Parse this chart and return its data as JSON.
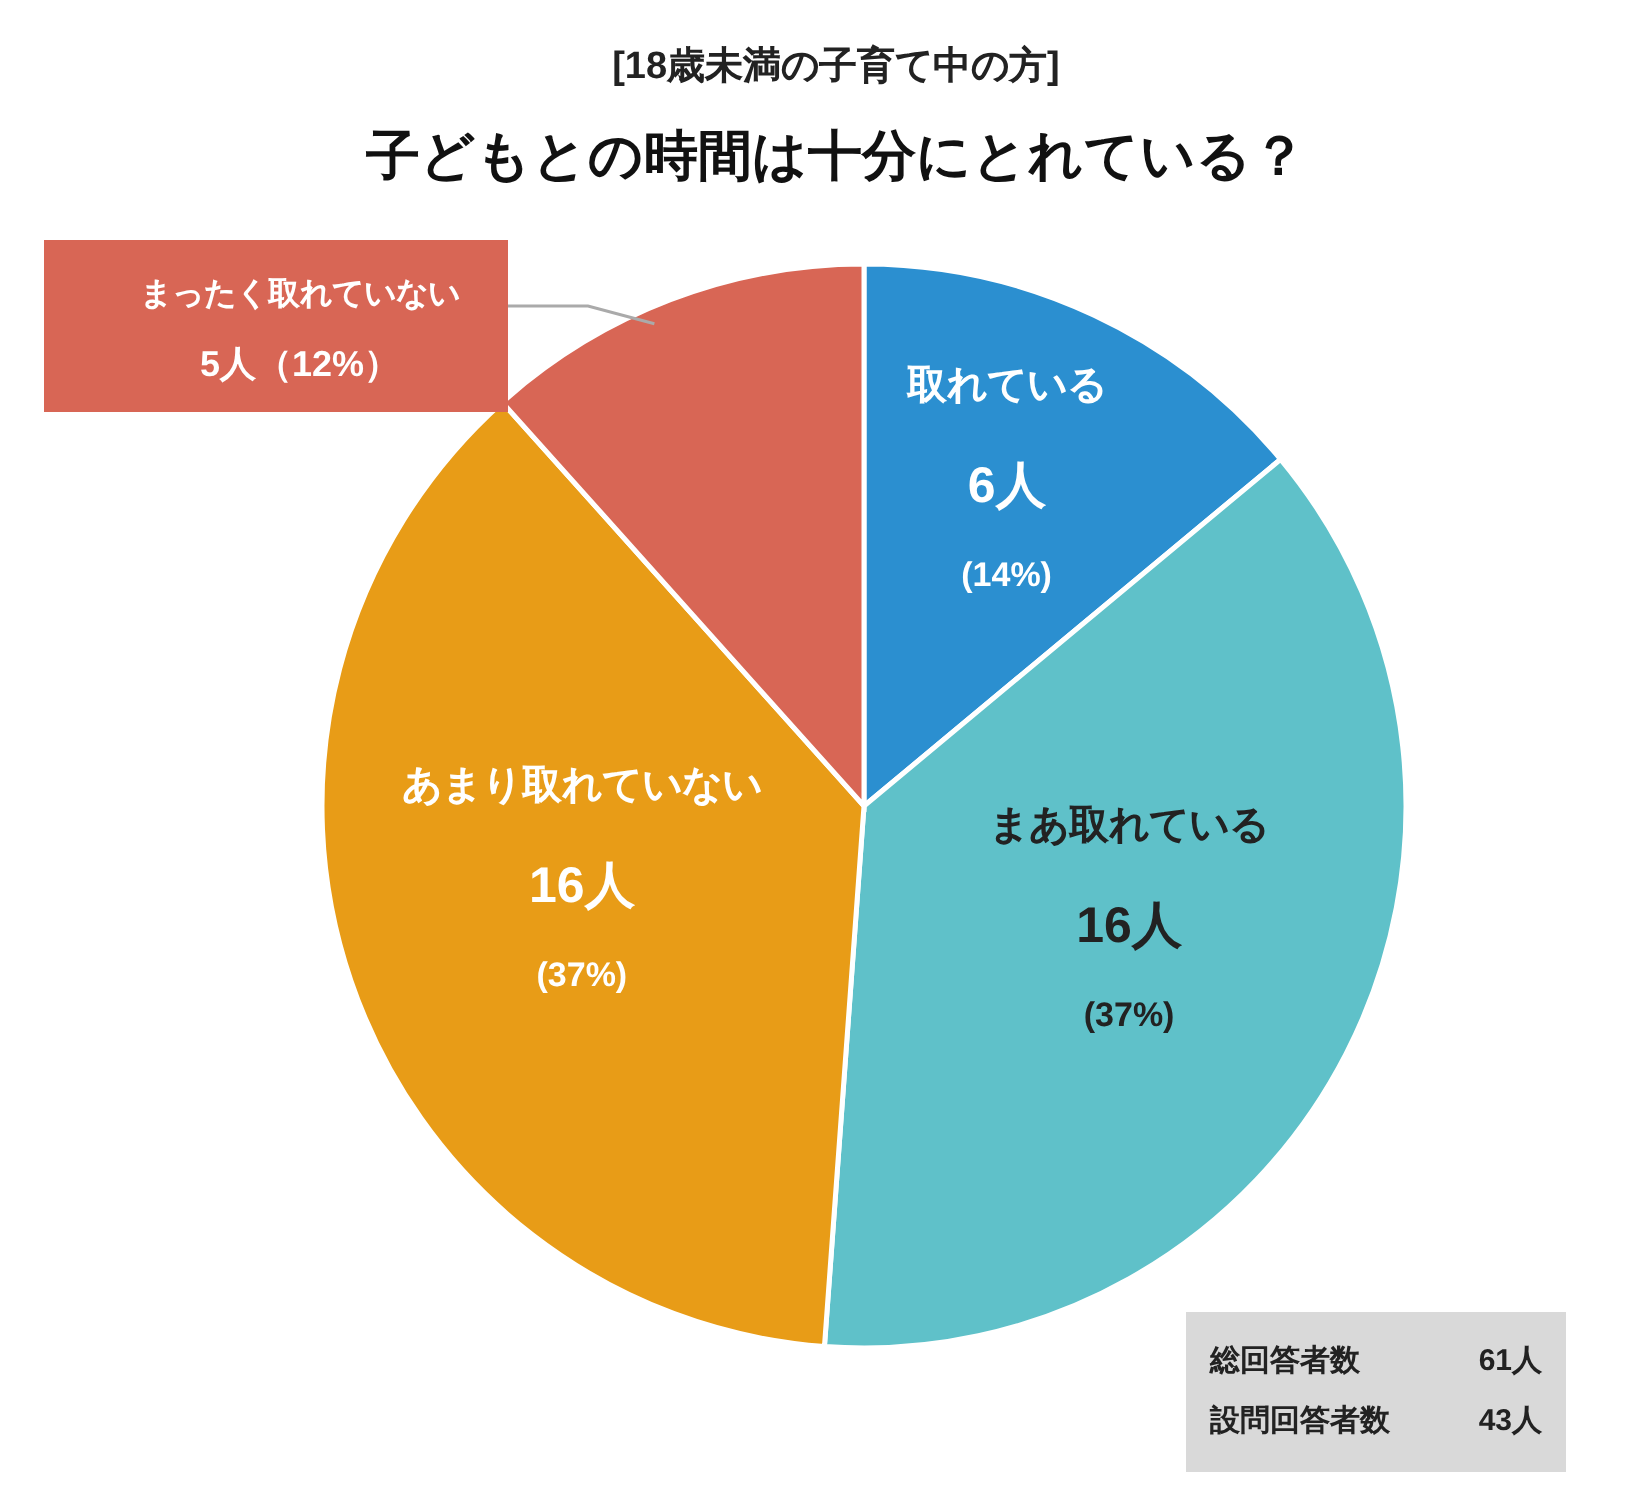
{
  "chart_data": {
    "type": "pie",
    "title": "子どもとの時間は十分にとれている？",
    "subtitle": "[18歳未満の子育て中の方]",
    "categories": [
      "取れている",
      "まあ取れている",
      "あまり取れていない",
      "まったく取れていない"
    ],
    "values": [
      6,
      16,
      16,
      5
    ],
    "value_labels": [
      "6人\n(14%)",
      "16人\n(37%)",
      "16人\n(37%)",
      "5人（12%）"
    ],
    "colors": [
      "#2b8fd0",
      "#5fc1c9",
      "#e89c17",
      "#d86655"
    ],
    "annotations": [
      "総回答者数 61人",
      "設問回答者数 43人"
    ]
  }
}
